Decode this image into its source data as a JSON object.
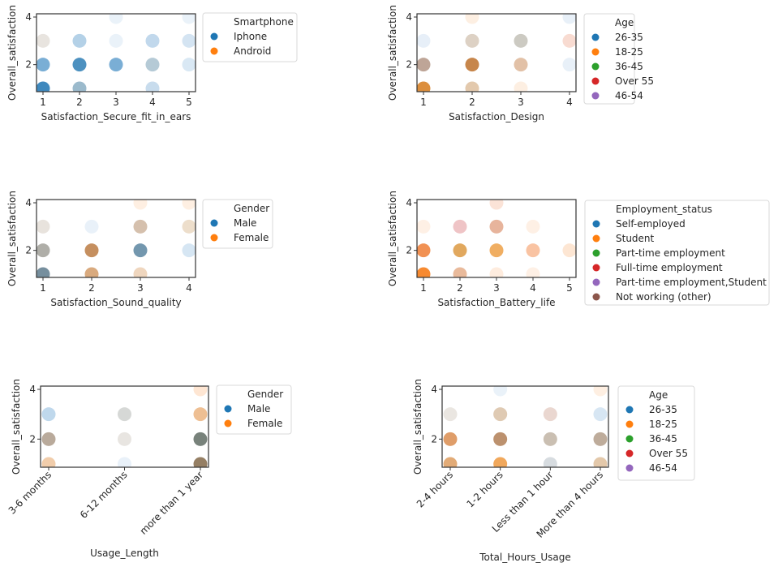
{
  "chart_data": [
    {
      "type": "scatter",
      "xlabel": "Satisfaction_Secure_fit_in_ears",
      "ylabel": "Overall_satisfaction",
      "xticks": [
        "1",
        "2",
        "3",
        "4",
        "5"
      ],
      "yticks": [
        "2",
        "4"
      ],
      "xlim": [
        1,
        5
      ],
      "ylim": [
        1,
        4
      ],
      "legend": {
        "title": "Smartphone",
        "placement": "outside-right",
        "entries": [
          {
            "label": "Iphone",
            "color": "#1f77b4"
          },
          {
            "label": "Android",
            "color": "#ff7f0e"
          }
        ]
      },
      "points": [
        {
          "x": 1,
          "y": 1,
          "color": "#2f7fb8"
        },
        {
          "x": 1,
          "y": 2,
          "color": "#6fa7d1"
        },
        {
          "x": 1,
          "y": 3,
          "color": "#e6e2dc"
        },
        {
          "x": 2,
          "y": 1,
          "color": "#93b4c8"
        },
        {
          "x": 2,
          "y": 2,
          "color": "#3e88bb"
        },
        {
          "x": 2,
          "y": 3,
          "color": "#aecde5"
        },
        {
          "x": 3,
          "y": 2,
          "color": "#6fa7d1"
        },
        {
          "x": 3,
          "y": 3,
          "color": "#e8f1f8"
        },
        {
          "x": 3,
          "y": 4,
          "color": "#e8f1f8"
        },
        {
          "x": 4,
          "y": 1,
          "color": "#c3d9ec"
        },
        {
          "x": 4,
          "y": 2,
          "color": "#afc5d3"
        },
        {
          "x": 4,
          "y": 3,
          "color": "#bcd5ea"
        },
        {
          "x": 5,
          "y": 2,
          "color": "#d6e6f3"
        },
        {
          "x": 5,
          "y": 3,
          "color": "#d0e2f1"
        },
        {
          "x": 5,
          "y": 4,
          "color": "#e8f1f8"
        }
      ]
    },
    {
      "type": "scatter",
      "xlabel": "Satisfaction_Design",
      "ylabel": "Overall_satisfaction",
      "xticks": [
        "1",
        "2",
        "3",
        "4"
      ],
      "yticks": [
        "2",
        "4"
      ],
      "xlim": [
        1,
        4
      ],
      "ylim": [
        1,
        4
      ],
      "legend": {
        "title": "Age",
        "placement": "outside-right",
        "entries": [
          {
            "label": "26-35",
            "color": "#1f77b4"
          },
          {
            "label": "18-25",
            "color": "#ff7f0e"
          },
          {
            "label": "36-45",
            "color": "#2ca02c"
          },
          {
            "label": "Over 55",
            "color": "#d62728"
          },
          {
            "label": "46-54",
            "color": "#9467bd"
          }
        ]
      },
      "points": [
        {
          "x": 1,
          "y": 1,
          "color": "#d9852e"
        },
        {
          "x": 1,
          "y": 2,
          "color": "#b89d8e"
        },
        {
          "x": 1,
          "y": 3,
          "color": "#e5eef7"
        },
        {
          "x": 2,
          "y": 1,
          "color": "#e1c4a6"
        },
        {
          "x": 2,
          "y": 2,
          "color": "#c27c3c"
        },
        {
          "x": 2,
          "y": 3,
          "color": "#dacdbf"
        },
        {
          "x": 2,
          "y": 4,
          "color": "#fdeee0"
        },
        {
          "x": 3,
          "y": 1,
          "color": "#fdeee0"
        },
        {
          "x": 3,
          "y": 2,
          "color": "#dfbc9f"
        },
        {
          "x": 3,
          "y": 3,
          "color": "#c8c5bd"
        },
        {
          "x": 4,
          "y": 2,
          "color": "#e6eff7"
        },
        {
          "x": 4,
          "y": 3,
          "color": "#f7d8cd"
        },
        {
          "x": 4,
          "y": 4,
          "color": "#e6eff7"
        }
      ]
    },
    {
      "type": "scatter",
      "xlabel": "Satisfaction_Sound_quality",
      "ylabel": "Overall_satisfaction",
      "xticks": [
        "1",
        "2",
        "3",
        "4"
      ],
      "yticks": [
        "2",
        "4"
      ],
      "xlim": [
        1,
        4
      ],
      "ylim": [
        1,
        4
      ],
      "legend": {
        "title": "Gender",
        "placement": "outside-right",
        "entries": [
          {
            "label": "Male",
            "color": "#1f77b4"
          },
          {
            "label": "Female",
            "color": "#ff7f0e"
          }
        ]
      },
      "points": [
        {
          "x": 1,
          "y": 1,
          "color": "#6a8696"
        },
        {
          "x": 1,
          "y": 2,
          "color": "#a8a7a1"
        },
        {
          "x": 1,
          "y": 3,
          "color": "#e6e1da"
        },
        {
          "x": 2,
          "y": 1,
          "color": "#d6a373"
        },
        {
          "x": 2,
          "y": 2,
          "color": "#c08551"
        },
        {
          "x": 2,
          "y": 3,
          "color": "#e7f0f8"
        },
        {
          "x": 3,
          "y": 1,
          "color": "#eed3b9"
        },
        {
          "x": 3,
          "y": 2,
          "color": "#678ea7"
        },
        {
          "x": 3,
          "y": 3,
          "color": "#d1bba6"
        },
        {
          "x": 3,
          "y": 4,
          "color": "#feeee0"
        },
        {
          "x": 4,
          "y": 2,
          "color": "#d3e4f2"
        },
        {
          "x": 4,
          "y": 3,
          "color": "#ecdbc7"
        },
        {
          "x": 4,
          "y": 4,
          "color": "#feeee0"
        }
      ]
    },
    {
      "type": "scatter",
      "xlabel": "Satisfaction_Battery_life",
      "ylabel": "Overall_satisfaction",
      "xticks": [
        "1",
        "2",
        "3",
        "4",
        "5"
      ],
      "yticks": [
        "2",
        "4"
      ],
      "xlim": [
        1,
        5
      ],
      "ylim": [
        1,
        4
      ],
      "legend": {
        "title": "Employment_status",
        "placement": "outside-right",
        "entries": [
          {
            "label": "Self-employed",
            "color": "#1f77b4"
          },
          {
            "label": "Student",
            "color": "#ff7f0e"
          },
          {
            "label": "Part-time employment",
            "color": "#2ca02c"
          },
          {
            "label": "Full-time employment",
            "color": "#d62728"
          },
          {
            "label": "Part-time employment,Student",
            "color": "#9467bd"
          },
          {
            "label": "Not working (other)",
            "color": "#8c564b"
          }
        ]
      },
      "points": [
        {
          "x": 1,
          "y": 1,
          "color": "#f6801f"
        },
        {
          "x": 1,
          "y": 2,
          "color": "#f08844"
        },
        {
          "x": 1,
          "y": 3,
          "color": "#feefe3"
        },
        {
          "x": 2,
          "y": 1,
          "color": "#e7b493"
        },
        {
          "x": 2,
          "y": 2,
          "color": "#dea150"
        },
        {
          "x": 2,
          "y": 3,
          "color": "#eebfc1"
        },
        {
          "x": 3,
          "y": 1,
          "color": "#feeadb"
        },
        {
          "x": 3,
          "y": 2,
          "color": "#efa755"
        },
        {
          "x": 3,
          "y": 3,
          "color": "#e5ae94"
        },
        {
          "x": 3,
          "y": 4,
          "color": "#fbe1d4"
        },
        {
          "x": 4,
          "y": 1,
          "color": "#feefe3"
        },
        {
          "x": 4,
          "y": 2,
          "color": "#f8be9a"
        },
        {
          "x": 4,
          "y": 3,
          "color": "#feefe3"
        },
        {
          "x": 5,
          "y": 2,
          "color": "#fde4cf"
        }
      ]
    },
    {
      "type": "scatter",
      "xlabel": "Usage_Length",
      "ylabel": "Overall_satisfaction",
      "xticks": [
        "3-6 months",
        "6-12 months",
        "more than 1 year"
      ],
      "yticks": [
        "2",
        "4"
      ],
      "xlim": [
        0,
        2
      ],
      "ylim": [
        1,
        4
      ],
      "legend": {
        "title": "Gender",
        "placement": "outside-right",
        "entries": [
          {
            "label": "Male",
            "color": "#1f77b4"
          },
          {
            "label": "Female",
            "color": "#ff7f0e"
          }
        ]
      },
      "points": [
        {
          "x": 0,
          "y": 1,
          "color": "#f0c9a4"
        },
        {
          "x": 0,
          "y": 2,
          "color": "#b3a393"
        },
        {
          "x": 0,
          "y": 3,
          "color": "#bad5ea"
        },
        {
          "x": 1,
          "y": 1,
          "color": "#e7f0f8"
        },
        {
          "x": 1,
          "y": 2,
          "color": "#e6e3de"
        },
        {
          "x": 1,
          "y": 3,
          "color": "#d3d5d3"
        },
        {
          "x": 2,
          "y": 1,
          "color": "#8c7457"
        },
        {
          "x": 2,
          "y": 2,
          "color": "#6c7770"
        },
        {
          "x": 2,
          "y": 3,
          "color": "#edba8a"
        },
        {
          "x": 2,
          "y": 4,
          "color": "#fee4cf"
        }
      ]
    },
    {
      "type": "scatter",
      "xlabel": "Total_Hours_Usage",
      "ylabel": "Overall_satisfaction",
      "xticks": [
        "2-4 hours",
        "1-2 hours",
        "Less than 1 hour",
        "More than 4 hours"
      ],
      "yticks": [
        "2",
        "4"
      ],
      "xlim": [
        0,
        3
      ],
      "ylim": [
        1,
        4
      ],
      "legend": {
        "title": "Age",
        "placement": "outside-right",
        "entries": [
          {
            "label": "26-35",
            "color": "#1f77b4"
          },
          {
            "label": "18-25",
            "color": "#ff7f0e"
          },
          {
            "label": "36-45",
            "color": "#2ca02c"
          },
          {
            "label": "Over 55",
            "color": "#d62728"
          },
          {
            "label": "46-54",
            "color": "#9467bd"
          }
        ]
      },
      "points": [
        {
          "x": 0,
          "y": 1,
          "color": "#dfa46b"
        },
        {
          "x": 0,
          "y": 2,
          "color": "#dc955c"
        },
        {
          "x": 0,
          "y": 3,
          "color": "#e8e4de"
        },
        {
          "x": 1,
          "y": 1,
          "color": "#f0a14e"
        },
        {
          "x": 1,
          "y": 2,
          "color": "#b68862"
        },
        {
          "x": 1,
          "y": 3,
          "color": "#dcc5ad"
        },
        {
          "x": 1,
          "y": 4,
          "color": "#e8f1f8"
        },
        {
          "x": 2,
          "y": 1,
          "color": "#d4d9dd"
        },
        {
          "x": 2,
          "y": 2,
          "color": "#c6baab"
        },
        {
          "x": 2,
          "y": 3,
          "color": "#e8d4cc"
        },
        {
          "x": 3,
          "y": 1,
          "color": "#e1c3a3"
        },
        {
          "x": 3,
          "y": 2,
          "color": "#b8a592"
        },
        {
          "x": 3,
          "y": 3,
          "color": "#d4e4f2"
        },
        {
          "x": 3,
          "y": 4,
          "color": "#feeee0"
        }
      ]
    }
  ]
}
